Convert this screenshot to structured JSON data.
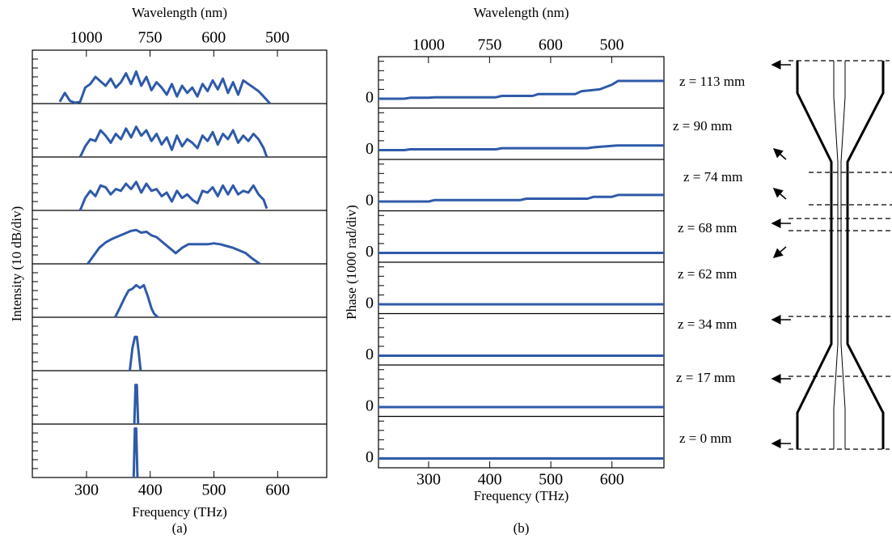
{
  "chart_data": [
    {
      "type": "line",
      "top_label": "Wavelength (nm)",
      "x_label": "Frequency (THz)",
      "y_label": "Intensity (10 dB/div)",
      "caption": "(a)",
      "color": "#2f5aa8",
      "xlim": [
        215,
        677
      ],
      "xticks": [
        300,
        400,
        500,
        600
      ],
      "top_ticks": [
        {
          "value": 299.8,
          "label": "1000"
        },
        {
          "value": 399.7,
          "label": "750"
        },
        {
          "value": 499.7,
          "label": "600"
        },
        {
          "value": 599.6,
          "label": "500"
        }
      ],
      "ylim": [
        0,
        60
      ],
      "minor_yticks": [
        10,
        20,
        30,
        40,
        50
      ],
      "series": [
        {
          "x": [
            258,
            266,
            274,
            282,
            290,
            298,
            306,
            314,
            322,
            330,
            338,
            346,
            354,
            362,
            370,
            378,
            386,
            394,
            402,
            410,
            418,
            426,
            434,
            442,
            450,
            458,
            466,
            474,
            482,
            490,
            498,
            506,
            514,
            522,
            530,
            538,
            546,
            554,
            562,
            570,
            578,
            588
          ],
          "values": [
            2,
            12,
            3,
            1,
            2,
            18,
            22,
            30,
            25,
            20,
            28,
            18,
            24,
            34,
            22,
            36,
            20,
            30,
            15,
            24,
            18,
            10,
            22,
            8,
            20,
            12,
            18,
            8,
            22,
            14,
            26,
            16,
            28,
            12,
            24,
            10,
            26,
            22,
            18,
            14,
            8,
            0
          ]
        },
        {
          "x": [
            290,
            298,
            306,
            314,
            322,
            330,
            338,
            346,
            354,
            362,
            370,
            378,
            386,
            394,
            402,
            410,
            418,
            426,
            434,
            442,
            450,
            458,
            466,
            474,
            482,
            490,
            498,
            506,
            514,
            522,
            530,
            538,
            546,
            554,
            562,
            570,
            578,
            583
          ],
          "values": [
            0,
            12,
            20,
            18,
            30,
            24,
            16,
            26,
            20,
            32,
            22,
            34,
            24,
            30,
            18,
            26,
            14,
            22,
            8,
            24,
            12,
            20,
            16,
            10,
            24,
            18,
            28,
            14,
            26,
            20,
            30,
            16,
            24,
            18,
            26,
            20,
            10,
            0
          ]
        },
        {
          "x": [
            290,
            298,
            306,
            314,
            322,
            330,
            338,
            346,
            354,
            362,
            370,
            378,
            386,
            394,
            402,
            410,
            418,
            426,
            434,
            442,
            450,
            458,
            466,
            474,
            482,
            490,
            498,
            506,
            514,
            522,
            530,
            538,
            546,
            554,
            562,
            570,
            578,
            583
          ],
          "values": [
            0,
            14,
            22,
            16,
            28,
            26,
            18,
            24,
            22,
            30,
            24,
            32,
            20,
            30,
            22,
            24,
            16,
            20,
            10,
            22,
            14,
            18,
            12,
            8,
            22,
            20,
            26,
            16,
            28,
            18,
            28,
            18,
            22,
            20,
            28,
            18,
            12,
            2
          ]
        },
        {
          "x": [
            302,
            310,
            320,
            330,
            340,
            350,
            360,
            370,
            378,
            386,
            394,
            402,
            410,
            420,
            430,
            440,
            450,
            460,
            470,
            480,
            490,
            500,
            510,
            520,
            530,
            540,
            550,
            560,
            572
          ],
          "values": [
            0,
            8,
            18,
            24,
            28,
            31,
            34,
            37,
            38,
            35,
            36,
            32,
            30,
            24,
            18,
            12,
            18,
            22,
            22,
            22,
            22,
            23,
            22,
            20,
            18,
            15,
            12,
            6,
            0
          ]
        },
        {
          "x": [
            345,
            352,
            360,
            366,
            372,
            378,
            384,
            390,
            396,
            402,
            406,
            412
          ],
          "values": [
            0,
            10,
            22,
            30,
            32,
            36,
            33,
            36,
            24,
            10,
            4,
            0
          ]
        },
        {
          "x": [
            368,
            372,
            376,
            379,
            382,
            385
          ],
          "values": [
            0,
            25,
            38,
            38,
            20,
            0
          ]
        },
        {
          "x": [
            375,
            377,
            379,
            381
          ],
          "values": [
            0,
            44,
            44,
            0
          ]
        },
        {
          "x": [
            374,
            376,
            378,
            380
          ],
          "values": [
            0,
            55,
            55,
            0
          ]
        }
      ]
    },
    {
      "type": "line",
      "top_label": "Wavelength (nm)",
      "x_label": "Frequency (THz)",
      "y_label": "Phase (1000 rad/div)",
      "caption": "(b)",
      "color": "#2f5aa8",
      "xlim": [
        218,
        685
      ],
      "xticks": [
        300,
        400,
        500,
        600
      ],
      "top_ticks": [
        {
          "value": 299.8,
          "label": "1000"
        },
        {
          "value": 399.7,
          "label": "750"
        },
        {
          "value": 499.7,
          "label": "600"
        },
        {
          "value": 599.6,
          "label": "500"
        }
      ],
      "ylim": [
        -1000,
        4500
      ],
      "yticks": [
        0
      ],
      "minor_yticks": [
        1000,
        2000,
        3000,
        4000
      ],
      "series": [
        {
          "x": [
            218,
            260,
            270,
            300,
            310,
            410,
            420,
            470,
            480,
            540,
            550,
            580,
            600,
            610,
            685
          ],
          "values": [
            0,
            0,
            100,
            100,
            150,
            150,
            300,
            300,
            500,
            500,
            800,
            1000,
            1500,
            1900,
            1900
          ]
        },
        {
          "x": [
            218,
            260,
            270,
            410,
            420,
            560,
            570,
            610,
            685
          ],
          "values": [
            0,
            0,
            80,
            80,
            200,
            200,
            300,
            500,
            500
          ]
        },
        {
          "x": [
            218,
            300,
            310,
            450,
            460,
            560,
            570,
            600,
            610,
            685
          ],
          "values": [
            0,
            0,
            150,
            150,
            300,
            300,
            500,
            500,
            700,
            700
          ]
        },
        {
          "x": [
            218,
            685
          ],
          "values": [
            0,
            0
          ]
        },
        {
          "x": [
            218,
            685
          ],
          "values": [
            0,
            0
          ]
        },
        {
          "x": [
            218,
            685
          ],
          "values": [
            0,
            0
          ]
        },
        {
          "x": [
            218,
            685
          ],
          "values": [
            0,
            0
          ]
        },
        {
          "x": [
            218,
            685
          ],
          "values": [
            0,
            0
          ]
        }
      ]
    }
  ],
  "diagram": {
    "z_labels": [
      "z = 113 mm",
      "z = 90 mm",
      "z = 74 mm",
      "z = 68 mm",
      "z = 62 mm",
      "z = 34 mm",
      "z = 17 mm",
      "z = 0 mm"
    ]
  }
}
